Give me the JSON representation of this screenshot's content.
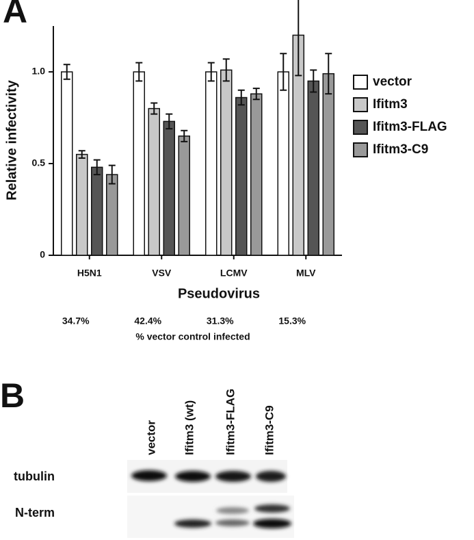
{
  "chart_data": {
    "type": "bar",
    "panel_label": "A",
    "ylabel": "Relative infectivity",
    "xlabel": "Pseudovirus",
    "categories": [
      "H5N1",
      "VSV",
      "LCMV",
      "MLV"
    ],
    "series": [
      {
        "name": "vector",
        "color": "#ffffff",
        "values": [
          1,
          1,
          1,
          1
        ],
        "errors": [
          0.04,
          0.05,
          0.05,
          0.1
        ]
      },
      {
        "name": "Ifitm3",
        "color": "#c8c8c8",
        "values": [
          0.55,
          0.8,
          1.01,
          1.2
        ],
        "errors": [
          0.02,
          0.03,
          0.06,
          0.22
        ]
      },
      {
        "name": "Ifitm3-FLAG",
        "color": "#555555",
        "values": [
          0.48,
          0.73,
          0.86,
          0.95
        ],
        "errors": [
          0.04,
          0.04,
          0.04,
          0.06
        ]
      },
      {
        "name": "Ifitm3-C9",
        "color": "#999999",
        "values": [
          0.44,
          0.65,
          0.88,
          0.99
        ],
        "errors": [
          0.05,
          0.03,
          0.03,
          0.11
        ]
      }
    ],
    "ylim": [
      0,
      1.25
    ],
    "yticks": [
      0,
      0.5,
      {
        "value": 1,
        "label": "1.0"
      }
    ],
    "annotations": {
      "texts": [
        "34.7%",
        "42.4%",
        "31.3%",
        "15.3%"
      ],
      "label": "% vector control infected"
    }
  },
  "blot": {
    "panel_label": "B",
    "lanes": [
      "vector",
      "Ifitm3 (wt)",
      "Ifitm3-FLAG",
      "Ifitm3-C9"
    ],
    "rows": [
      "tubulin",
      "N-term"
    ]
  }
}
